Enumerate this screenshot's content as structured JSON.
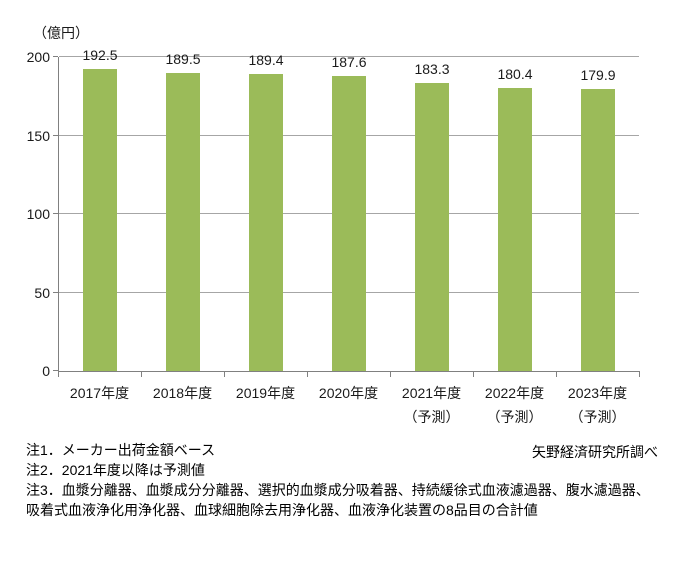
{
  "chart_data": {
    "type": "bar",
    "title": "",
    "unit_label": "（億円）",
    "categories": [
      "2017年度",
      "2018年度",
      "2019年度",
      "2020年度",
      "2021年度",
      "2022年度",
      "2023年度"
    ],
    "category_sublabels": [
      "",
      "",
      "",
      "",
      "（予測）",
      "（予測）",
      "（予測）"
    ],
    "values": [
      192.5,
      189.5,
      189.4,
      187.6,
      183.3,
      180.4,
      179.9
    ],
    "value_labels": [
      "192.5",
      "189.5",
      "189.4",
      "187.6",
      "183.3",
      "180.4",
      "179.9"
    ],
    "ylim": [
      0,
      200
    ],
    "yticks": [
      0,
      50,
      100,
      150,
      200
    ],
    "ytick_labels": [
      "0",
      "50",
      "100",
      "150",
      "200"
    ],
    "grid": true,
    "legend_position": "none",
    "bar_color": "#9BBB59",
    "gridline_color": "#A6A6A6",
    "axis_color": "#808080",
    "text_color": "#1a1a1a"
  },
  "notes": {
    "line1": "注1．メーカー出荷金額ベース",
    "line2": "注2．2021年度以降は予測値",
    "line3": "注3．血漿分離器、血漿成分分離器、選択的血漿成分吸着器、持続緩徐式血液濾過器、腹水濾過器、",
    "line4": "吸着式血液浄化用浄化器、血球細胞除去用浄化器、血液浄化装置の8品目の合計値",
    "source": "矢野経済研究所調べ"
  }
}
